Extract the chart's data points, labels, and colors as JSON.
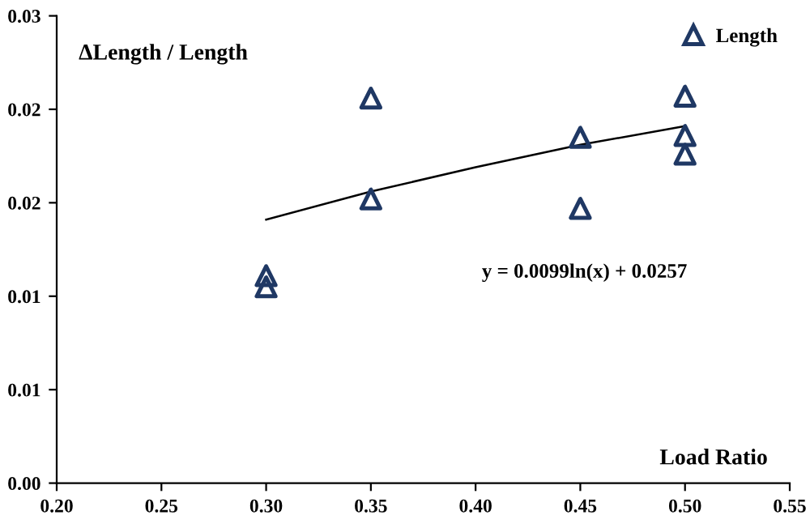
{
  "chart_data": {
    "type": "scatter",
    "xlabel": "Load Ratio",
    "ylabel": "ΔLength / Length",
    "xlim": [
      0.2,
      0.55
    ],
    "xticks": [
      {
        "value": 0.2,
        "label": "0.20"
      },
      {
        "value": 0.25,
        "label": "0.25"
      },
      {
        "value": 0.3,
        "label": "0.30"
      },
      {
        "value": 0.35,
        "label": "0.35"
      },
      {
        "value": 0.4,
        "label": "0.40"
      },
      {
        "value": 0.45,
        "label": "0.45"
      },
      {
        "value": 0.5,
        "label": "0.50"
      },
      {
        "value": 0.55,
        "label": "0.55"
      }
    ],
    "ylim": [
      0,
      0.025
    ],
    "yticks": [
      {
        "value": 0,
        "label": "0.00"
      },
      {
        "value": 0.005,
        "label": "0.01"
      },
      {
        "value": 0.01,
        "label": "0.01"
      },
      {
        "value": 0.015,
        "label": "0.02"
      },
      {
        "value": 0.02,
        "label": "0.02"
      },
      {
        "value": 0.025,
        "label": "0.03"
      }
    ],
    "grid": false,
    "legend": "top right",
    "series": [
      {
        "name": "Length",
        "marker": "triangle",
        "color": "#1f3864",
        "x": [
          0.3,
          0.3,
          0.35,
          0.35,
          0.45,
          0.45,
          0.5,
          0.5,
          0.5
        ],
        "values": [
          0.0111,
          0.0105,
          0.0206,
          0.0152,
          0.0185,
          0.0147,
          0.0207,
          0.0186,
          0.0176
        ]
      },
      {
        "type": "line",
        "marker": "none",
        "line_style": "solid",
        "color": "#000000",
        "x": [
          0.3,
          0.35,
          0.4,
          0.45,
          0.5
        ],
        "values": [
          0.0141,
          0.0156,
          0.0169,
          0.0181,
          0.0191
        ]
      }
    ],
    "annotations": [
      "y = 0.0099ln(x) + 0.0257"
    ]
  }
}
